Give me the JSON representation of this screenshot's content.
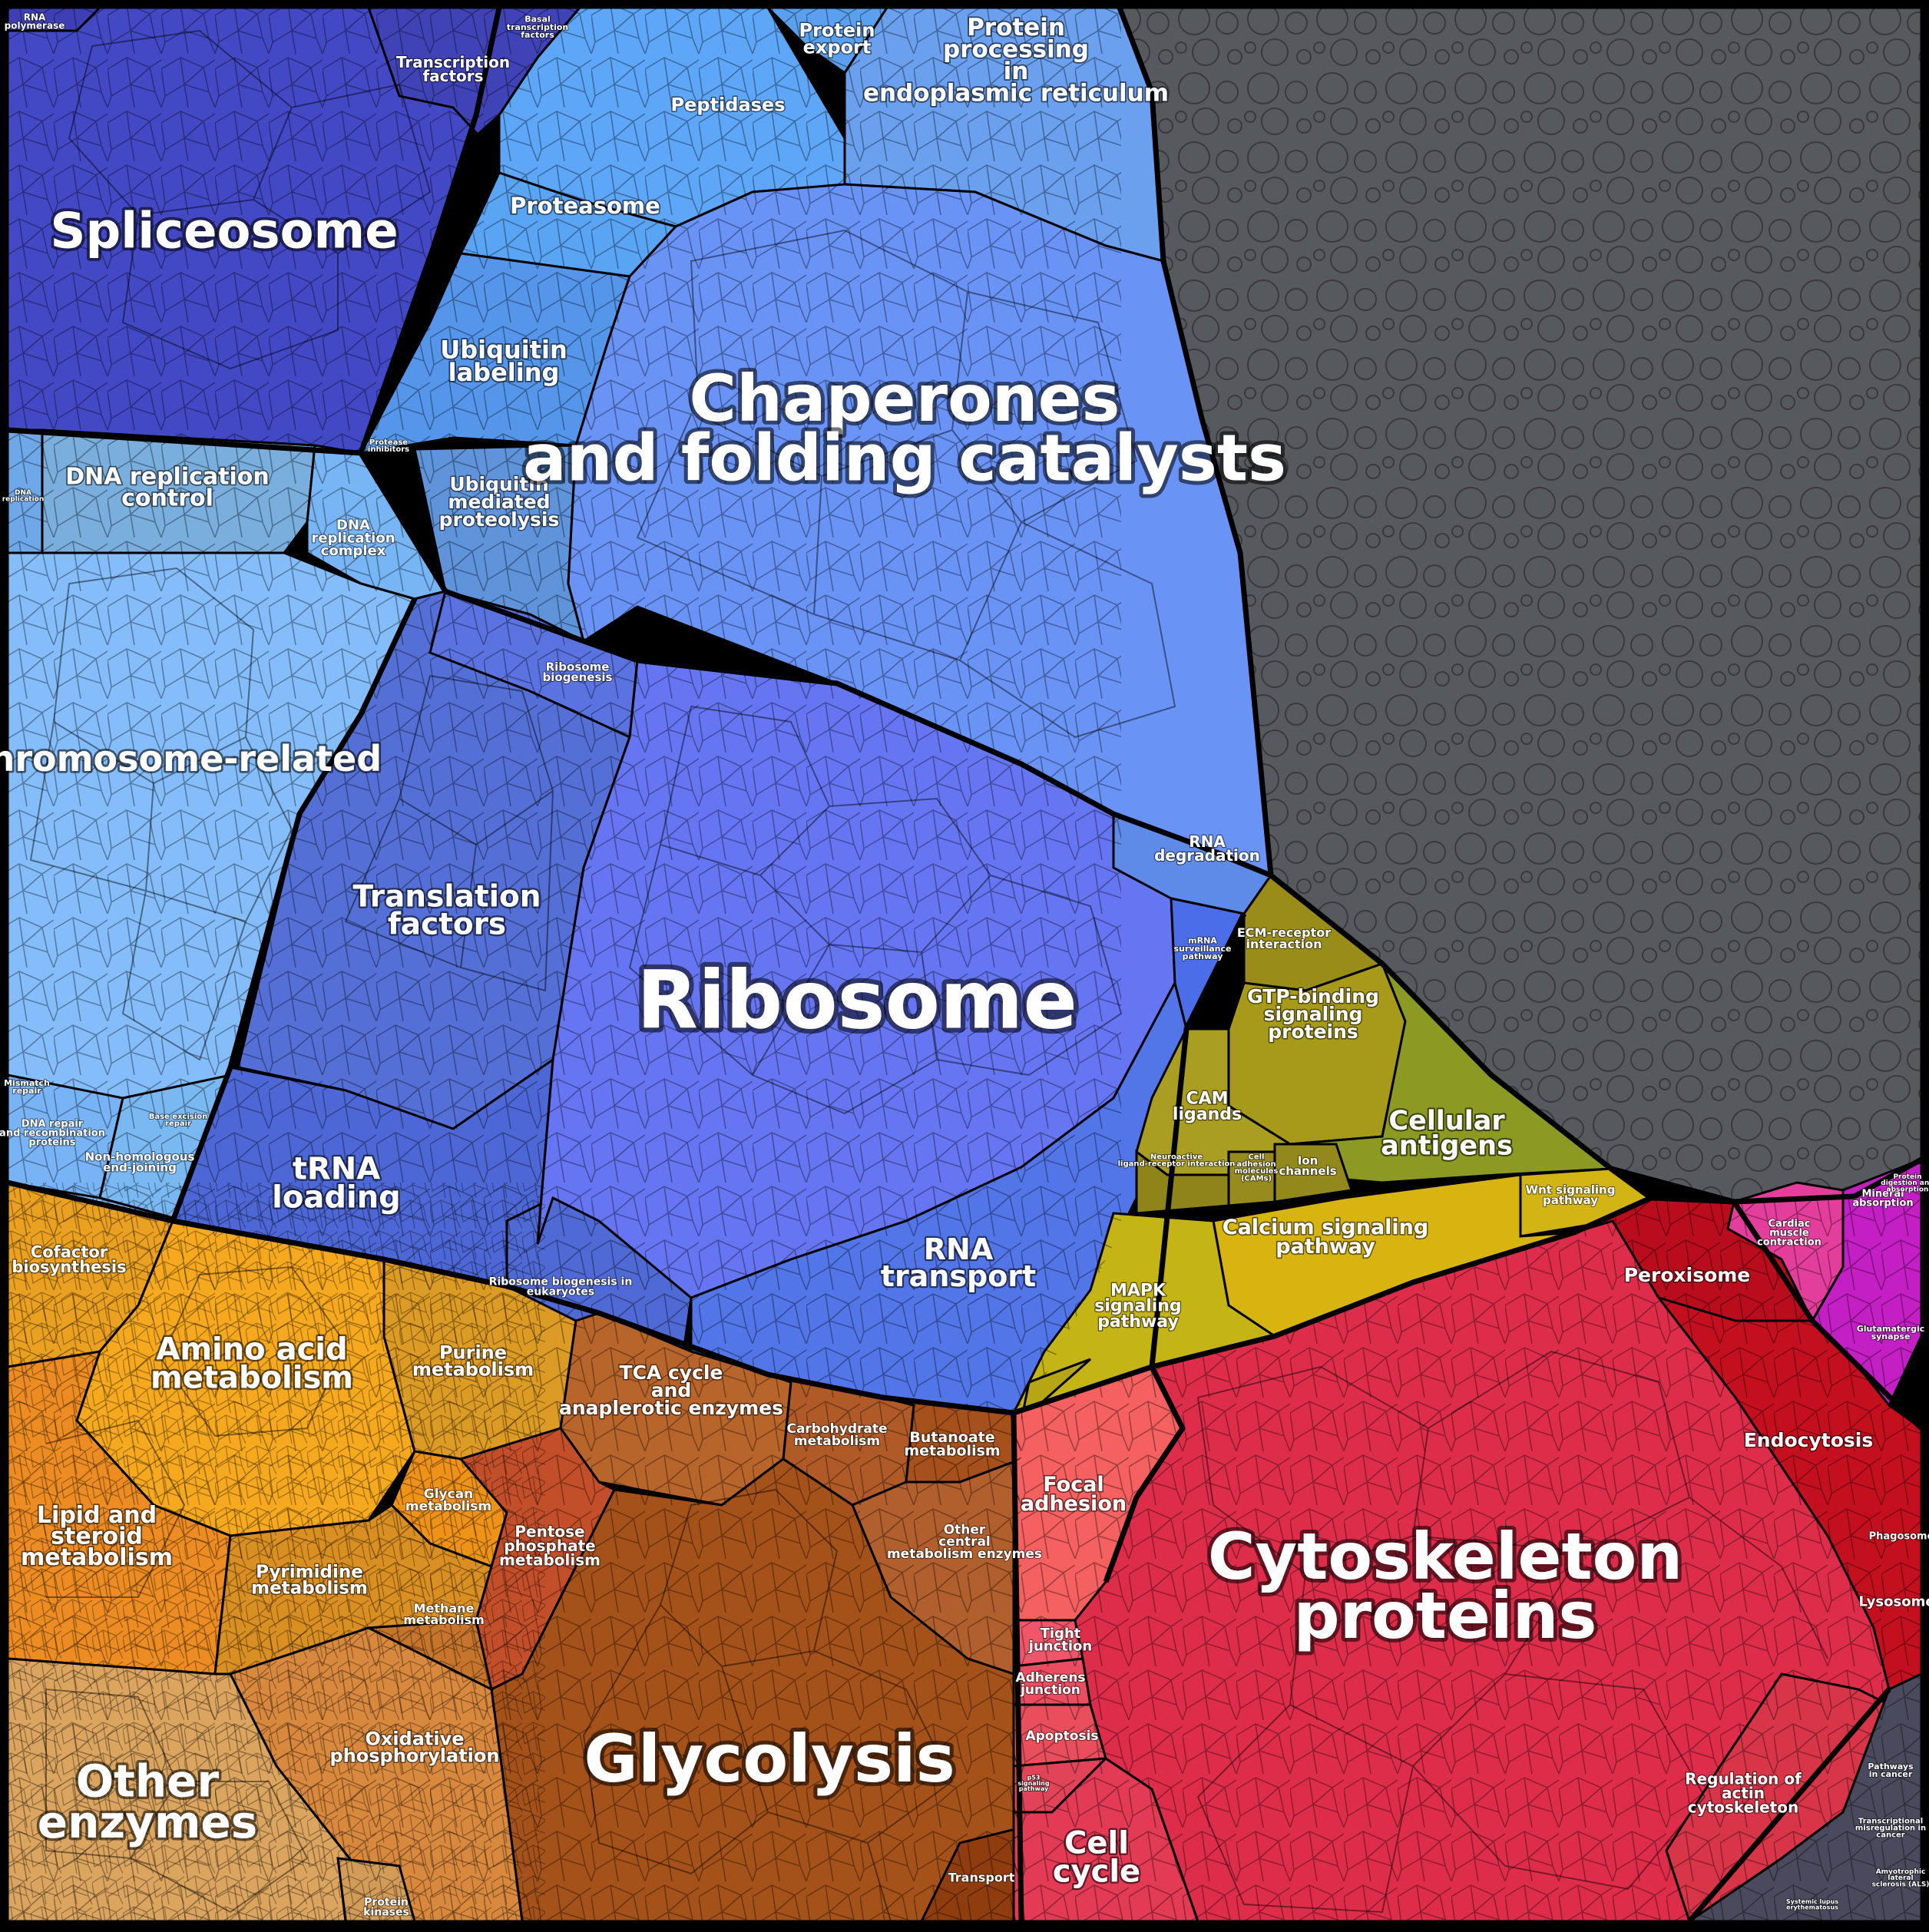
{
  "title": "",
  "labels": {
    "spliceosome": "Spliceosome",
    "rna_polymerase": "RNA polymerase",
    "transcription_factors": "Transcription factors",
    "basal_transcription_factors": "Basal transcription factors",
    "protein_export": "Protein export",
    "peptidases": "Peptidases",
    "protein_processing_er": "Protein processing in endoplasmic reticulum",
    "proteasome": "Proteasome",
    "ubiquitin_labeling": "Ubiquitin labeling",
    "protease_inhibitors": "Protease inhibitors",
    "ubiquitin_mediated_proteolysis": "Ubiquitin mediated proteolysis",
    "chaperones": "Chaperones and folding catalysts",
    "dna_replication_control": "DNA replication control",
    "dna_replication": "DNA replication",
    "dna_replication_complex": "DNA replication complex",
    "chromosome_related": "Chromosome-related",
    "ribosome_biogenesis": "Ribosome biogenesis",
    "translation_factors": "Translation factors",
    "ribosome": "Ribosome",
    "rna_degradation": "RNA degradation",
    "mrna_surveillance": "mRNA surveillance pathway",
    "mismatch_repair": "Mismatch repair",
    "dna_repair_recombination": "DNA repair and recombination proteins",
    "base_excision_repair": "Base excision repair",
    "non_homologous_end_joining": "Non-homologous end-joining",
    "trna_loading": "tRNA loading",
    "ribosome_biogenesis_eukaryotes": "Ribosome biogenesis in eukaryotes",
    "rna_transport": "RNA transport",
    "ecm_receptor": "ECM-receptor interaction",
    "gtp_binding": "GTP-binding signaling proteins",
    "cam_ligands": "CAM ligands",
    "cellular_antigens": "Cellular antigens",
    "neuroactive": "Neuroactive ligand-receptor interaction",
    "cell_adhesion_molecules": "Cell adhesion molecules (CAMs)",
    "ion_channels": "Ion channels",
    "wnt_signaling": "Wnt signaling pathway",
    "calcium_signaling": "Calcium signaling pathway",
    "mapk_signaling": "MAPK signaling pathway",
    "cofactor_biosynthesis": "Cofactor biosynthesis",
    "amino_acid_metabolism": "Amino acid metabolism",
    "purine_metabolism": "Purine metabolism",
    "tca_cycle": "TCA cycle and anaplerotic enzymes",
    "carbohydrate_metabolism": "Carbohydrate metabolism",
    "butanoate_metabolism": "Butanoate metabolism",
    "glycan_metabolism": "Glycan metabolism",
    "lipid_steroid": "Lipid and steroid metabolism",
    "pyrimidine_metabolism": "Pyrimidine metabolism",
    "pentose_phosphate": "Pentose phosphate metabolism",
    "other_central_metabolism": "Other central metabolism enzymes",
    "methane_metabolism": "Methane metabolism",
    "oxidative_phosphorylation": "Oxidative phosphorylation",
    "glycolysis": "Glycolysis",
    "other_enzymes": "Other enzymes",
    "protein_kinases": "Protein kinases",
    "transport": "Transport",
    "peroxisome": "Peroxisome",
    "mineral_absorption": "Mineral absorption",
    "protein_digestion": "Protein digestion and absorption",
    "cardiac_muscle": "Cardiac muscle contraction",
    "glutamatergic_synapse": "Glutamatergic synapse",
    "endocytosis": "Endocytosis",
    "focal_adhesion": "Focal adhesion",
    "cytoskeleton": "Cytoskeleton proteins",
    "phagosome": "Phagosome",
    "lysosome": "Lysosome",
    "tight_junction": "Tight junction",
    "adherens_junction": "Adherens junction",
    "apoptosis": "Apoptosis",
    "p53_signaling": "p53 signaling pathway",
    "cell_cycle": "Cell cycle",
    "regulation_actin": "Regulation of actin cytoskeleton",
    "pathways_cancer": "Pathways in cancer",
    "transcriptional_misregulation": "Transcriptional misregulation in cancer",
    "als": "Amyotrophic lateral sclerosis (ALS)",
    "sle": "Systemic lupus erythematosus"
  },
  "colors": {
    "spliceosome": "#4348c4",
    "transcription": "#3f43b6",
    "lightblue_top": "#5aa8ff",
    "protein_processing": "#6aa0ee",
    "proteasome": "#5aa4f4",
    "ubiquitin": "#5596ea",
    "chaperones": "#6a93f6",
    "dna_replication": "#7aaedd",
    "chromosome": "#84bdfa",
    "translation": "#5470d6",
    "ribosome": "#6676f2",
    "trna": "#4d68d6",
    "rna_transport": "#5276e8",
    "rna_degradation": "#5f8be8",
    "grey_unassigned": "#56595e",
    "olive": "#a79a1a",
    "cellular_antigens": "#8c9a24",
    "calcium": "#d8b410",
    "mapk": "#c5b415",
    "orange": "#f6a91e",
    "lipid": "#ec8c22",
    "tan": "#dba560",
    "brown": "#b8652c",
    "brown_dark": "#a5521a",
    "pentose": "#c34f2a",
    "red": "#de2d4a",
    "focal": "#f56060",
    "crimson": "#c4101e",
    "pink": "#e43e9c",
    "magenta": "#c41fc4",
    "slate": "#4a4a5e"
  }
}
